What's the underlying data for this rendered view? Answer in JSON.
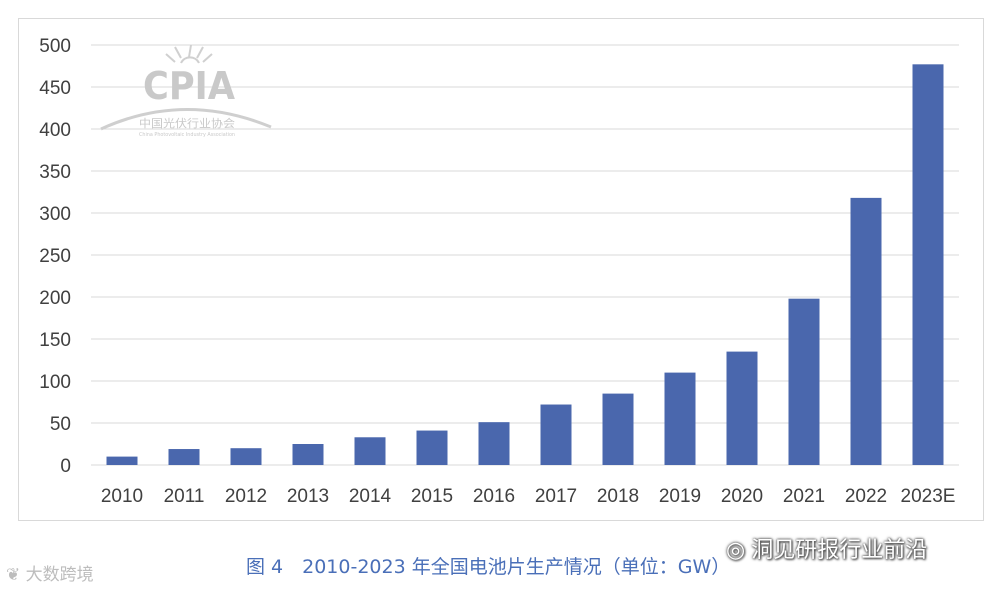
{
  "chart_data": {
    "type": "bar",
    "title": "",
    "xlabel": "",
    "ylabel": "",
    "categories": [
      "2010",
      "2011",
      "2012",
      "2013",
      "2014",
      "2015",
      "2016",
      "2017",
      "2018",
      "2019",
      "2020",
      "2021",
      "2022",
      "2023E"
    ],
    "values": [
      10,
      19,
      20,
      25,
      33,
      41,
      51,
      72,
      85,
      110,
      135,
      198,
      318,
      477
    ],
    "ylim": [
      0,
      500
    ],
    "yticks": [
      "0",
      "50",
      "100",
      "150",
      "200",
      "250",
      "300",
      "350",
      "400",
      "450",
      "500"
    ],
    "grid": true,
    "bar_color": "#4a67ad",
    "legend": "none"
  },
  "logo": {
    "abbr": "CPIA",
    "name_cn": "中国光伏行业协会",
    "name_en": "China Photovoltaic Industry Association",
    "color": "#c9c9c9"
  },
  "caption": "图 4　2010-2023 年全国电池片生产情况（单位：GW）",
  "watermarks": {
    "left": "大数跨境",
    "right": "洞见研报行业前沿"
  }
}
